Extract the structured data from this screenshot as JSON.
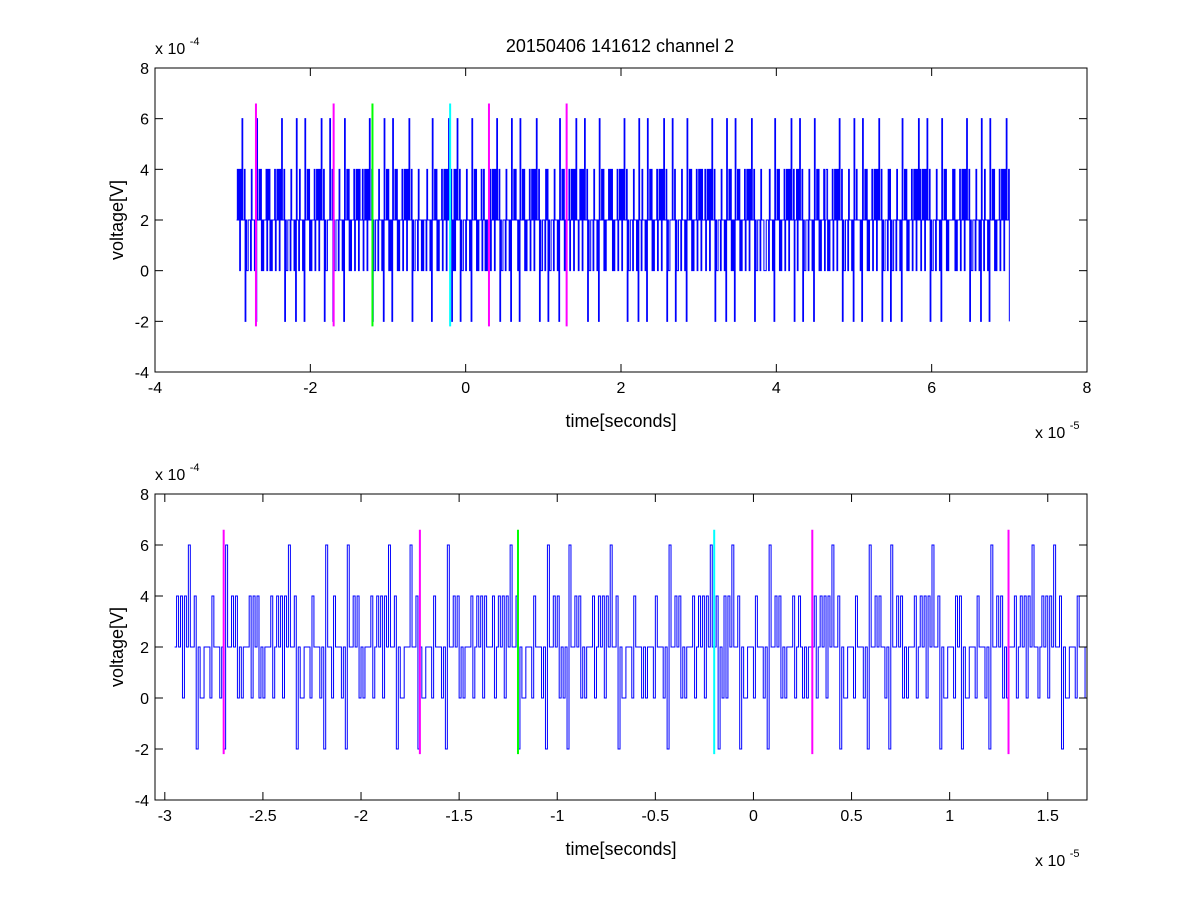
{
  "figure_title": "20150406 141612 channel 2",
  "chart_data": [
    {
      "type": "line",
      "title": "20150406 141612 channel 2",
      "xlabel": "time[seconds]",
      "ylabel": "voltage[V]",
      "x_exponent_label": "x 10",
      "x_exponent": "-5",
      "y_exponent_label": "x 10",
      "y_exponent": "-4",
      "xlim": [
        -4e-05,
        8e-05
      ],
      "ylim": [
        -0.0004,
        0.0008
      ],
      "xticks": [
        -4e-05,
        -2e-05,
        0,
        2e-05,
        4e-05,
        6e-05,
        8e-05
      ],
      "xtick_labels": [
        "-4",
        "-2",
        "0",
        "2",
        "4",
        "6",
        "8"
      ],
      "yticks": [
        -0.0004,
        -0.0002,
        0,
        0.0002,
        0.0004,
        0.0006,
        0.0008
      ],
      "ytick_labels": [
        "-4",
        "-2",
        "0",
        "2",
        "4",
        "6",
        "8"
      ],
      "grid": false,
      "series": [
        {
          "color": "#0000ff",
          "style": "step",
          "x_range": [
            -2.95e-05,
            7e-05
          ],
          "sample_step": 1e-07,
          "quantum": 0.0002,
          "pattern_y": [
            0.0002,
            0,
            0.0002,
            0.0004,
            0.0002,
            0.0002,
            0,
            0.0004,
            0.0002,
            0.0006,
            0.0002,
            0,
            0.0002,
            0.0004,
            0.0002,
            -0.0002,
            0.0002,
            0.0004,
            0,
            0.0002,
            0.0002,
            0.0004,
            0.0006,
            0.0002,
            0,
            0.0002,
            0.0004,
            0.0002,
            0,
            0.0002,
            0.0004,
            0.0002,
            0.0002,
            0,
            0.0002,
            0.0004,
            0.0002,
            -0.0002,
            0,
            0.0002
          ]
        }
      ],
      "markers": [
        {
          "x": -2.7e-05,
          "color": "#ff00ff",
          "y0": -0.00022,
          "y1": 0.00066
        },
        {
          "x": -1.7e-05,
          "color": "#ff00ff",
          "y0": -0.00022,
          "y1": 0.00066
        },
        {
          "x": -1.2e-05,
          "color": "#00ff00",
          "y0": -0.00022,
          "y1": 0.00066
        },
        {
          "x": -2e-06,
          "color": "#00ffff",
          "y0": -0.00022,
          "y1": 0.00066
        },
        {
          "x": 3e-06,
          "color": "#ff00ff",
          "y0": -0.00022,
          "y1": 0.00066
        },
        {
          "x": 1.3e-05,
          "color": "#ff00ff",
          "y0": -0.00022,
          "y1": 0.00066
        }
      ]
    },
    {
      "type": "line",
      "title": "",
      "xlabel": "time[seconds]",
      "ylabel": "voltage[V]",
      "x_exponent_label": "x 10",
      "x_exponent": "-5",
      "y_exponent_label": "x 10",
      "y_exponent": "-4",
      "xlim": [
        -3.05e-05,
        1.7e-05
      ],
      "ylim": [
        -0.0004,
        0.0008
      ],
      "xticks": [
        -3e-05,
        -2.5e-05,
        -2e-05,
        -1.5e-05,
        -1e-05,
        -5e-06,
        0,
        5e-06,
        1e-05,
        1.5e-05
      ],
      "xtick_labels": [
        "-3",
        "-2.5",
        "-2",
        "-1.5",
        "-1",
        "-0.5",
        "0",
        "0.5",
        "1",
        "1.5"
      ],
      "yticks": [
        -0.0004,
        -0.0002,
        0,
        0.0002,
        0.0004,
        0.0006,
        0.0008
      ],
      "ytick_labels": [
        "-4",
        "-2",
        "0",
        "2",
        "4",
        "6",
        "8"
      ],
      "grid": false,
      "series": [
        {
          "color": "#0000ff",
          "style": "step",
          "x_range": [
            -2.95e-05,
            1.7e-05
          ],
          "sample_step": 1e-07,
          "quantum": 0.0002,
          "pattern_y": [
            0.0002,
            0,
            0.0002,
            0.0004,
            0.0002,
            0.0002,
            0,
            0.0004,
            0.0002,
            0.0006,
            0.0002,
            0,
            0.0002,
            0.0004,
            0.0002,
            -0.0002,
            0.0002,
            0.0004,
            0,
            0.0002,
            0.0002,
            0.0004,
            0.0006,
            0.0002,
            0,
            0.0002,
            0.0004,
            0.0002,
            0,
            0.0002,
            0.0004,
            0.0002,
            0.0002,
            0,
            0.0002,
            0.0004,
            0.0002,
            -0.0002,
            0,
            0.0002
          ]
        }
      ],
      "markers": [
        {
          "x": -2.7e-05,
          "color": "#ff00ff",
          "y0": -0.00022,
          "y1": 0.00066
        },
        {
          "x": -1.7e-05,
          "color": "#ff00ff",
          "y0": -0.00022,
          "y1": 0.00066
        },
        {
          "x": -1.2e-05,
          "color": "#00ff00",
          "y0": -0.00022,
          "y1": 0.00066
        },
        {
          "x": -2e-06,
          "color": "#00ffff",
          "y0": -0.00022,
          "y1": 0.00066
        },
        {
          "x": 3e-06,
          "color": "#ff00ff",
          "y0": -0.00022,
          "y1": 0.00066
        },
        {
          "x": 1.3e-05,
          "color": "#ff00ff",
          "y0": -0.00022,
          "y1": 0.00066
        }
      ]
    }
  ]
}
